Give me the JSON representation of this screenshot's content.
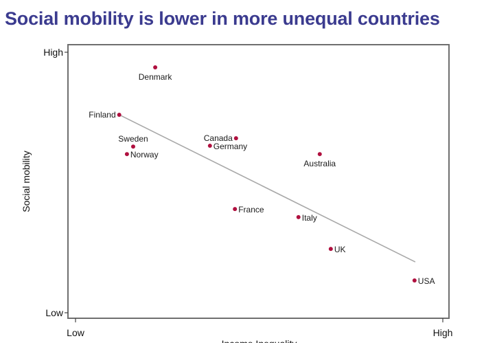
{
  "chart_data": {
    "type": "scatter",
    "title": "Social mobility is lower in more unequal countries",
    "xlabel": "Income Inequality",
    "ylabel": "Social mobility",
    "xlim": [
      0,
      10
    ],
    "ylim": [
      0,
      10
    ],
    "x_ticks": [
      {
        "value": 0,
        "label": "Low"
      },
      {
        "value": 10,
        "label": "High"
      }
    ],
    "y_ticks": [
      {
        "value": 0,
        "label": "Low"
      },
      {
        "value": 10,
        "label": "High"
      }
    ],
    "grid": false,
    "point_color": "#b0103f",
    "trend_color": "#a8a8a8",
    "title_color": "#3b3b8f",
    "points": [
      {
        "label": "Denmark",
        "x": 2.17,
        "y": 9.42,
        "label_pos": "below"
      },
      {
        "label": "Finland",
        "x": 1.19,
        "y": 7.6,
        "label_pos": "left"
      },
      {
        "label": "Sweden",
        "x": 1.57,
        "y": 6.38,
        "label_pos": "above"
      },
      {
        "label": "Norway",
        "x": 1.4,
        "y": 6.09,
        "label_pos": "right"
      },
      {
        "label": "Canada",
        "x": 4.37,
        "y": 6.7,
        "label_pos": "left"
      },
      {
        "label": "Germany",
        "x": 3.66,
        "y": 6.41,
        "label_pos": "right"
      },
      {
        "label": "Australia",
        "x": 6.65,
        "y": 6.09,
        "label_pos": "below"
      },
      {
        "label": "France",
        "x": 4.34,
        "y": 3.98,
        "label_pos": "right"
      },
      {
        "label": "Italy",
        "x": 6.07,
        "y": 3.67,
        "label_pos": "right"
      },
      {
        "label": "UK",
        "x": 6.95,
        "y": 2.45,
        "label_pos": "right"
      },
      {
        "label": "USA",
        "x": 9.23,
        "y": 1.24,
        "label_pos": "right"
      }
    ],
    "trend_line": {
      "x": [
        1.19,
        9.25
      ],
      "y": [
        7.6,
        1.95
      ]
    }
  }
}
